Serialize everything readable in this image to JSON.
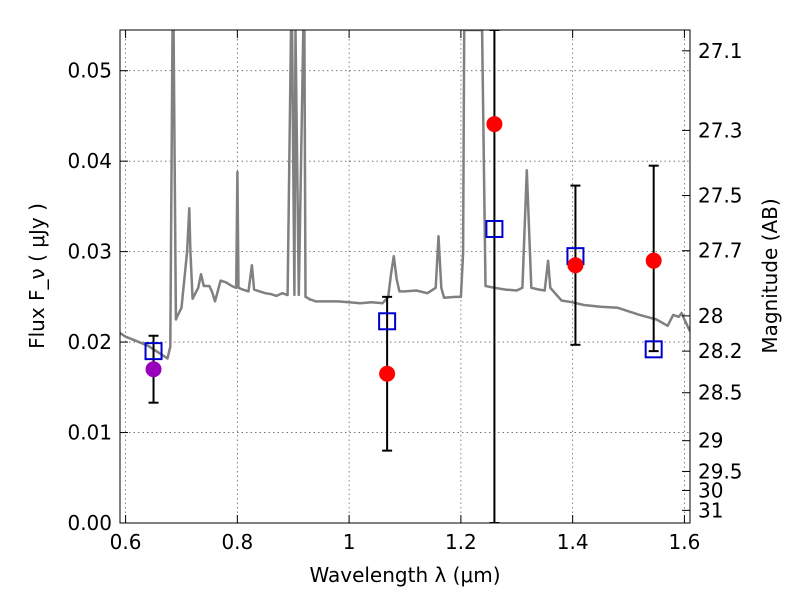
{
  "chart_data": {
    "type": "scatter",
    "xlabel": "Wavelength  λ (μm)",
    "ylabel": "Flux  F_ν  ( μJy )",
    "ylabel_right": "Magnitude (AB)",
    "xlim": [
      0.59,
      1.61
    ],
    "ylim": [
      0.0,
      0.0545
    ],
    "grid": true,
    "x_ticks": [
      0.6,
      0.8,
      1.0,
      1.2,
      1.4,
      1.6
    ],
    "x_tick_labels": [
      "0.6",
      "0.8",
      "1",
      "1.2",
      "1.4",
      "1.6"
    ],
    "y_ticks": [
      0.0,
      0.01,
      0.02,
      0.03,
      0.04,
      0.05
    ],
    "y_tick_labels": [
      "0.00",
      "0.01",
      "0.02",
      "0.03",
      "0.04",
      "0.05"
    ],
    "right_axis_ticks": [
      {
        "label": "27.1",
        "flux": 0.0522
      },
      {
        "label": "27.3",
        "flux": 0.0434
      },
      {
        "label": "27.5",
        "flux": 0.0362
      },
      {
        "label": "27.7",
        "flux": 0.0301
      },
      {
        "label": "28",
        "flux": 0.0229
      },
      {
        "label": "28.2",
        "flux": 0.019
      },
      {
        "label": "28.5",
        "flux": 0.0144
      },
      {
        "label": "29",
        "flux": 0.0091
      },
      {
        "label": "29.5",
        "flux": 0.0057
      },
      {
        "label": "30",
        "flux": 0.0036
      },
      {
        "label": "31",
        "flux": 0.0014
      }
    ],
    "colors": {
      "model_line": "#808080",
      "observed": "#ff0000",
      "observed_alt": "#9900bb",
      "model_squares": "#0000cc",
      "errorbar": "#000000"
    },
    "series": [
      {
        "kind": "model_spectrum",
        "x": [
          0.59,
          0.6,
          0.62,
          0.64,
          0.66,
          0.675,
          0.68,
          0.684,
          0.686,
          0.69,
          0.692,
          0.7,
          0.71,
          0.714,
          0.716,
          0.72,
          0.73,
          0.735,
          0.74,
          0.75,
          0.755,
          0.76,
          0.77,
          0.78,
          0.79,
          0.798,
          0.8,
          0.802,
          0.81,
          0.82,
          0.826,
          0.83,
          0.84,
          0.85,
          0.86,
          0.87,
          0.88,
          0.89,
          0.896,
          0.898,
          0.902,
          0.904,
          0.91,
          0.918,
          0.92,
          0.922,
          0.928,
          0.93,
          0.932,
          0.94,
          0.96,
          0.98,
          1.0,
          1.02,
          1.04,
          1.06,
          1.07,
          1.075,
          1.08,
          1.085,
          1.09,
          1.1,
          1.12,
          1.14,
          1.155,
          1.16,
          1.165,
          1.17,
          1.19,
          1.2,
          1.204,
          1.206,
          1.21,
          1.22,
          1.226,
          1.232,
          1.238,
          1.244,
          1.26,
          1.28,
          1.3,
          1.31,
          1.318,
          1.326,
          1.34,
          1.35,
          1.356,
          1.36,
          1.38,
          1.4,
          1.42,
          1.45,
          1.48,
          1.5,
          1.52,
          1.55,
          1.57,
          1.58,
          1.59,
          1.595,
          1.6,
          1.61
        ],
        "y": [
          0.021,
          0.0206,
          0.0201,
          0.0196,
          0.0188,
          0.0182,
          0.0195,
          0.0545,
          0.0545,
          0.0225,
          0.0228,
          0.0238,
          0.03,
          0.0348,
          0.03,
          0.0248,
          0.026,
          0.0275,
          0.0262,
          0.0262,
          0.0255,
          0.0245,
          0.0268,
          0.0266,
          0.0262,
          0.026,
          0.0388,
          0.026,
          0.0258,
          0.0256,
          0.0285,
          0.0258,
          0.0256,
          0.0254,
          0.0253,
          0.0251,
          0.0254,
          0.0252,
          0.0545,
          0.0545,
          0.0252,
          0.0545,
          0.0252,
          0.0545,
          0.0545,
          0.025,
          0.0248,
          0.0247,
          0.0247,
          0.0245,
          0.0245,
          0.0245,
          0.0244,
          0.0243,
          0.0244,
          0.0243,
          0.025,
          0.0275,
          0.0295,
          0.027,
          0.0256,
          0.0256,
          0.0257,
          0.0254,
          0.026,
          0.0317,
          0.026,
          0.0249,
          0.025,
          0.025,
          0.0298,
          0.0545,
          0.0545,
          0.0545,
          0.0545,
          0.0545,
          0.0545,
          0.0262,
          0.026,
          0.0258,
          0.0257,
          0.026,
          0.039,
          0.026,
          0.0258,
          0.0257,
          0.029,
          0.026,
          0.0246,
          0.0244,
          0.0241,
          0.0239,
          0.0238,
          0.0234,
          0.023,
          0.0225,
          0.0218,
          0.023,
          0.0228,
          0.0232,
          0.0225,
          0.0212
        ]
      },
      {
        "kind": "observed",
        "x": [
          1.068,
          1.26,
          1.405,
          1.545
        ],
        "y": [
          0.0165,
          0.0441,
          0.0285,
          0.029
        ],
        "yerr_low": [
          0.0085,
          0.0441,
          0.0088,
          0.01
        ],
        "yerr_high": [
          0.0085,
          0.011,
          0.0088,
          0.0105
        ]
      },
      {
        "kind": "observed_alt",
        "x": [
          0.65
        ],
        "y": [
          0.017
        ],
        "yerr_low": [
          0.0037
        ],
        "yerr_high": [
          0.0037
        ]
      },
      {
        "kind": "model_photometry",
        "x": [
          0.65,
          1.068,
          1.26,
          1.405,
          1.545
        ],
        "y": [
          0.019,
          0.0223,
          0.0325,
          0.0295,
          0.0192
        ]
      }
    ]
  }
}
